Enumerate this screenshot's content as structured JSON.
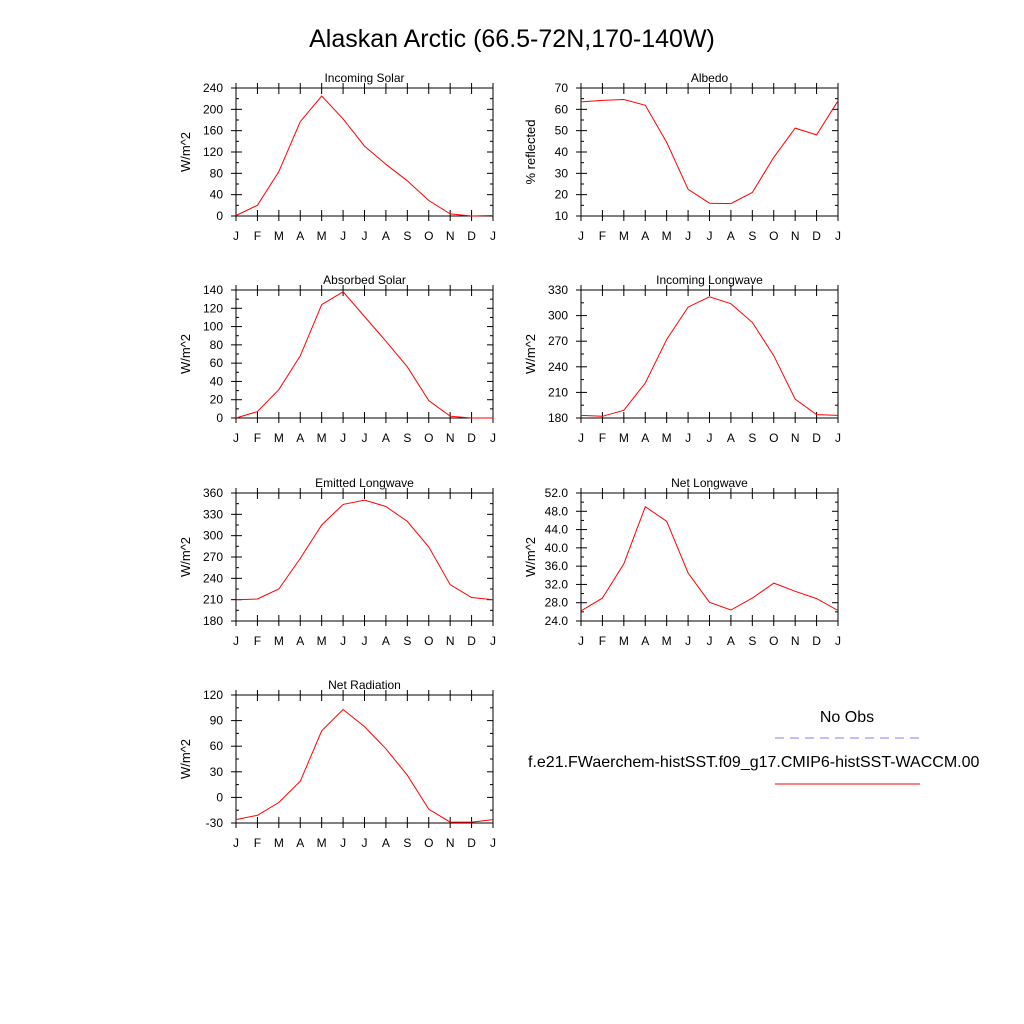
{
  "page_title": "Alaskan Arctic (66.5-72N,170-140W)",
  "months": [
    "J",
    "F",
    "M",
    "A",
    "M",
    "J",
    "J",
    "A",
    "S",
    "O",
    "N",
    "D",
    "J"
  ],
  "colors": {
    "model": "#ff0000",
    "obs": "#8080ff",
    "axes": "#000000"
  },
  "legend": {
    "obs_label": "No Obs",
    "model_label": "f.e21.FWaerchem-histSST.f09_g17.CMIP6-histSST-WACCM.00"
  },
  "chart_data": [
    {
      "type": "line",
      "title": "Incoming Solar",
      "ylabel": "W/m^2",
      "ylim": [
        0,
        240
      ],
      "yticks": [
        0,
        40,
        80,
        120,
        160,
        200,
        240
      ],
      "ytick_labels": [
        "0",
        "40",
        "80",
        "120",
        "160",
        "200",
        "240"
      ],
      "values": [
        1,
        20,
        83,
        177,
        225,
        182,
        131,
        97,
        66,
        29,
        4,
        0,
        1
      ]
    },
    {
      "type": "line",
      "title": "Albedo",
      "ylabel": "% reflected",
      "ylim": [
        10,
        70
      ],
      "yticks": [
        10,
        20,
        30,
        40,
        50,
        60,
        70
      ],
      "ytick_labels": [
        "10",
        "20",
        "30",
        "40",
        "50",
        "60",
        "70"
      ],
      "values": [
        63.5,
        64.2,
        64.6,
        61.9,
        44.5,
        22.5,
        16.0,
        15.8,
        21.0,
        37.5,
        51.2,
        48.0,
        64.0
      ]
    },
    {
      "type": "line",
      "title": "Absorbed Solar",
      "ylabel": "W/m^2",
      "ylim": [
        0,
        140
      ],
      "yticks": [
        0,
        20,
        40,
        60,
        80,
        100,
        120,
        140
      ],
      "ytick_labels": [
        "0",
        "20",
        "40",
        "60",
        "80",
        "100",
        "120",
        "140"
      ],
      "values": [
        0,
        7,
        31,
        68,
        124,
        138,
        111,
        84,
        56,
        19,
        2,
        0,
        0
      ]
    },
    {
      "type": "line",
      "title": "Incoming Longwave",
      "ylabel": "W/m^2",
      "ylim": [
        180,
        330
      ],
      "yticks": [
        180,
        210,
        240,
        270,
        300,
        330
      ],
      "ytick_labels": [
        "180",
        "210",
        "240",
        "270",
        "300",
        "330"
      ],
      "values": [
        183,
        182,
        189,
        221,
        272,
        310,
        322,
        314,
        292,
        253,
        202,
        184,
        183
      ]
    },
    {
      "type": "line",
      "title": "Emitted Longwave",
      "ylabel": "W/m^2",
      "ylim": [
        180,
        360
      ],
      "yticks": [
        180,
        210,
        240,
        270,
        300,
        330,
        360
      ],
      "ytick_labels": [
        "180",
        "210",
        "240",
        "270",
        "300",
        "330",
        "360"
      ],
      "values": [
        210,
        211,
        225,
        268,
        315,
        344,
        350,
        341,
        320,
        284,
        231,
        213,
        210
      ]
    },
    {
      "type": "line",
      "title": "Net Longwave",
      "ylabel": "W/m^2",
      "ylim": [
        24,
        52
      ],
      "yticks": [
        24,
        28,
        32,
        36,
        40,
        44,
        48,
        52
      ],
      "ytick_labels": [
        "24.0",
        "28.0",
        "32.0",
        "36.0",
        "40.0",
        "44.0",
        "48.0",
        "52.0"
      ],
      "values": [
        26.2,
        29.0,
        36.5,
        49.0,
        45.8,
        34.5,
        28.1,
        26.4,
        29.0,
        32.3,
        30.5,
        28.9,
        26.3
      ]
    },
    {
      "type": "line",
      "title": "Net Radiation",
      "ylabel": "W/m^2",
      "ylim": [
        -30,
        120
      ],
      "yticks": [
        -30,
        0,
        30,
        60,
        90,
        120
      ],
      "ytick_labels": [
        "-30",
        "0",
        "30",
        "60",
        "90",
        "120"
      ],
      "values": [
        -26,
        -21,
        -6,
        19,
        78,
        103,
        83,
        57,
        26,
        -14,
        -29,
        -29,
        -26
      ]
    }
  ]
}
